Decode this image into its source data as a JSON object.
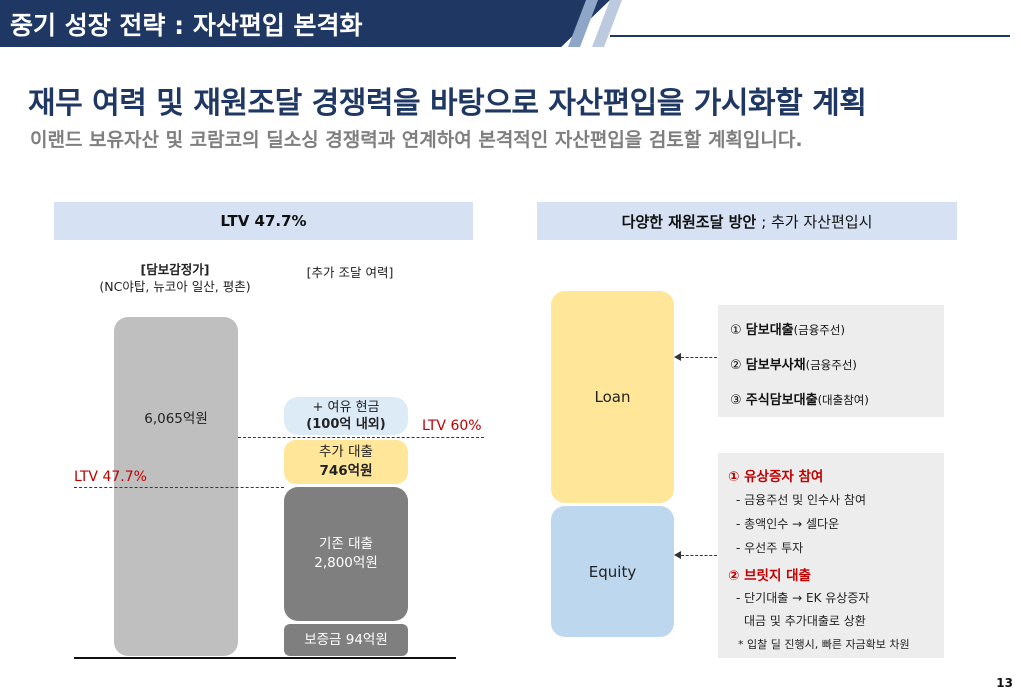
{
  "header": {
    "title": "중기 성장 전략 : 자산편입 본격화"
  },
  "headline": "재무 여력 및 재원조달 경쟁력을 바탕으로 자산편입을 가시화할 계획",
  "subline": "이랜드 보유자산 및 코람코의 딜소싱 경쟁력과 연계하여 본격적인 자산편입을 검토할 계획입니다.",
  "left_panel": {
    "title": "LTV 47.7%",
    "collateral_label": "[담보감정가]",
    "collateral_assets": "(NC야탑, 뉴코아 일산, 평촌)",
    "capacity_label": "[추가 조달 여력]",
    "collateral_value": "6,065억원",
    "spare_cash_line1": "+ 여유 현금",
    "spare_cash_line2": "(100억 내외)",
    "additional_loan_line1": "추가 대출",
    "additional_loan_line2": "746억원",
    "existing_loan_line1": "기존 대출",
    "existing_loan_line2": "2,800억원",
    "deposit": "보증금 94억원",
    "ltv_60": "LTV 60%",
    "ltv_current": "LTV 47.7%"
  },
  "right_panel": {
    "title_bold": "다양한 재원조달 방안",
    "title_rest": "; 추가 자산편입시",
    "loan_label": "Loan",
    "equity_label": "Equity",
    "loan_items": [
      {
        "num": "①",
        "name": "담보대출",
        "note": "(금융주선)"
      },
      {
        "num": "②",
        "name": "담보부사채",
        "note": "(금융주선)"
      },
      {
        "num": "③",
        "name": "주식담보대출",
        "note": "(대출참여)"
      }
    ],
    "equity_items": {
      "rights_title": "① 유상증자 참여",
      "rights_lines": [
        "- 금융주선 및 인수사 참여",
        "- 총액인수 → 셀다운",
        "- 우선주 투자"
      ],
      "bridge_title": "② 브릿지 대출",
      "bridge_lines": [
        "- 단기대출 → EK 유상증자",
        "대금 및 추가대출로 상환"
      ],
      "footnote": "* 입찰 딜 진행시, 빠른 자금확보 차원"
    }
  },
  "colors": {
    "navy": "#1f3763",
    "panel_header": "#d6e2f3",
    "gray_bar": "#bfbfbf",
    "dark_bar": "#7f7f7f",
    "cash_bar": "#ddebf7",
    "loan_yellow": "#ffe699",
    "equity_blue": "#bdd7ee",
    "red": "#c00000"
  },
  "page_number": "13"
}
